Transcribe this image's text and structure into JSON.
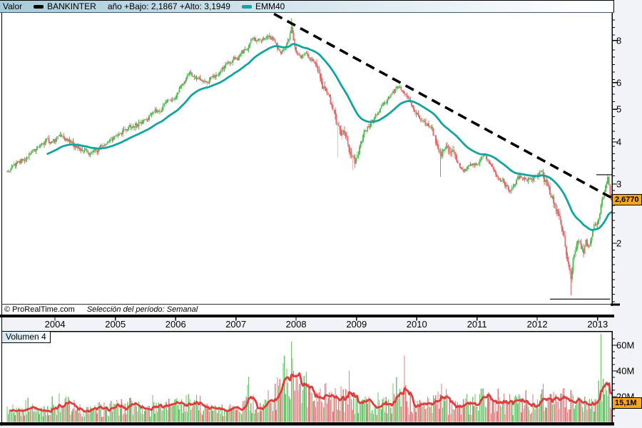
{
  "header": {
    "panel_label": "Valor",
    "instrument": "BANKINTER",
    "year_stats": "año +Bajo: 2,1867 +Alto: 3,1949",
    "ma_name": "EMM40"
  },
  "footer": {
    "copyright": "© ProRealTime.com",
    "period": "Selección del período: Semanal"
  },
  "price_axis": {
    "major_values": [
      2,
      3,
      4,
      5,
      6,
      8
    ],
    "major_labels": [
      "2",
      "3",
      "4",
      "5",
      "6",
      "8"
    ],
    "last_price_label": "2,6770"
  },
  "volume_panel": {
    "label": "Volumen 4",
    "axis_labels": [
      {
        "v": 60,
        "text": "60M"
      },
      {
        "v": 40,
        "text": "40M"
      },
      {
        "v": 20,
        "text": "20M"
      }
    ],
    "last_ma_label": "15,1M"
  },
  "x_axis": {
    "years": [
      "2004",
      "2005",
      "2006",
      "2007",
      "2008",
      "2009",
      "2010",
      "2011",
      "2012",
      "2013"
    ]
  },
  "colors": {
    "up": "#57bd5b",
    "down": "#e06e6e",
    "ema": "#12a5a0",
    "vol_up": "#6cc46c",
    "vol_down": "#e07e7e",
    "vol_ma": "#e23b3b",
    "trendline": "#000000",
    "label_bg": "#f9a61c"
  },
  "chart_data": {
    "type": "candlestick",
    "instrument": "BANKINTER",
    "timeframe": "Semanal",
    "log_scale": true,
    "start_date": "2003-03-17",
    "weeks": 524,
    "price_axis_range": [
      1.32,
      9.7
    ],
    "volume_axis_range_M": [
      0,
      70
    ],
    "year_low": 2.1867,
    "year_high": 3.1949,
    "last_close": 2.677,
    "ema_period": 40,
    "volume_ma_last_M": 15.1,
    "price_waypoints": [
      [
        0,
        3.3
      ],
      [
        8,
        3.45
      ],
      [
        18,
        3.62
      ],
      [
        27,
        3.88
      ],
      [
        38,
        4.05
      ],
      [
        48,
        4.1
      ],
      [
        56,
        3.98
      ],
      [
        64,
        3.8
      ],
      [
        72,
        3.68
      ],
      [
        80,
        3.85
      ],
      [
        88,
        4.05
      ],
      [
        98,
        4.22
      ],
      [
        108,
        4.45
      ],
      [
        118,
        4.62
      ],
      [
        128,
        4.9
      ],
      [
        138,
        5.15
      ],
      [
        146,
        5.5
      ],
      [
        152,
        5.95
      ],
      [
        159,
        6.4
      ],
      [
        164,
        6.25
      ],
      [
        169,
        5.95
      ],
      [
        175,
        6.1
      ],
      [
        183,
        6.45
      ],
      [
        191,
        6.75
      ],
      [
        199,
        7.15
      ],
      [
        207,
        7.55
      ],
      [
        212,
        8.1
      ],
      [
        217,
        7.9
      ],
      [
        223,
        8.3
      ],
      [
        229,
        8.1
      ],
      [
        233,
        7.7
      ],
      [
        237,
        7.2
      ],
      [
        241,
        7.8
      ],
      [
        245,
        8.4
      ],
      [
        246,
        8.7
      ],
      [
        248,
        7.9
      ],
      [
        251,
        7.35
      ],
      [
        255,
        7.2
      ],
      [
        259,
        7.4
      ],
      [
        263,
        7.05
      ],
      [
        267,
        6.8
      ],
      [
        271,
        6.2
      ],
      [
        276,
        5.55
      ],
      [
        281,
        5.05
      ],
      [
        285,
        4.6
      ],
      [
        289,
        4.1
      ],
      [
        292,
        4.35
      ],
      [
        295,
        3.95
      ],
      [
        299,
        3.6
      ],
      [
        301,
        3.52
      ],
      [
        305,
        3.95
      ],
      [
        311,
        4.35
      ],
      [
        318,
        4.7
      ],
      [
        325,
        5.1
      ],
      [
        332,
        5.55
      ],
      [
        338,
        5.82
      ],
      [
        342,
        5.65
      ],
      [
        346,
        5.42
      ],
      [
        353,
        5.0
      ],
      [
        360,
        4.6
      ],
      [
        367,
        4.38
      ],
      [
        371,
        4.05
      ],
      [
        375,
        3.6
      ],
      [
        379,
        3.85
      ],
      [
        383,
        3.75
      ],
      [
        388,
        3.55
      ],
      [
        394,
        3.28
      ],
      [
        399,
        3.35
      ],
      [
        404,
        3.42
      ],
      [
        409,
        3.52
      ],
      [
        414,
        3.58
      ],
      [
        419,
        3.4
      ],
      [
        424,
        3.22
      ],
      [
        429,
        3.08
      ],
      [
        434,
        2.88
      ],
      [
        437,
        2.95
      ],
      [
        441,
        3.08
      ],
      [
        446,
        3.18
      ],
      [
        450,
        3.05
      ],
      [
        454,
        3.1
      ],
      [
        458,
        3.22
      ],
      [
        461,
        3.32
      ],
      [
        464,
        3.12
      ],
      [
        468,
        2.92
      ],
      [
        473,
        2.7
      ],
      [
        477,
        2.45
      ],
      [
        482,
        2.12
      ],
      [
        485,
        1.8
      ],
      [
        488,
        1.56
      ],
      [
        490,
        1.78
      ],
      [
        492,
        1.95
      ],
      [
        494,
        2.06
      ],
      [
        497,
        1.96
      ],
      [
        499,
        1.86
      ],
      [
        501,
        2.0
      ],
      [
        503,
        1.92
      ],
      [
        505,
        2.06
      ],
      [
        507,
        2.2
      ],
      [
        509,
        2.3
      ],
      [
        511,
        2.26
      ],
      [
        513,
        2.45
      ],
      [
        515,
        2.65
      ],
      [
        517,
        2.88
      ],
      [
        519,
        3.06
      ],
      [
        520,
        3.14
      ],
      [
        521,
        2.96
      ],
      [
        522,
        2.78
      ],
      [
        523,
        2.677
      ]
    ],
    "wick_overrides": [
      [
        159,
        6.55,
        1
      ],
      [
        246,
        9.3,
        1
      ],
      [
        286,
        3.6,
        0
      ],
      [
        299,
        3.3,
        0
      ],
      [
        375,
        3.15,
        0
      ],
      [
        488,
        1.4,
        0
      ],
      [
        511,
        2.187,
        0
      ],
      [
        520,
        3.195,
        1
      ]
    ],
    "volume_waypoints": [
      [
        0,
        10
      ],
      [
        10,
        9
      ],
      [
        17,
        14
      ],
      [
        25,
        9
      ],
      [
        40,
        10
      ],
      [
        52,
        13
      ],
      [
        70,
        10
      ],
      [
        90,
        11
      ],
      [
        104,
        13
      ],
      [
        120,
        10
      ],
      [
        140,
        12
      ],
      [
        159,
        16
      ],
      [
        171,
        12
      ],
      [
        186,
        11
      ],
      [
        201,
        13
      ],
      [
        216,
        15
      ],
      [
        230,
        18
      ],
      [
        234,
        26
      ],
      [
        240,
        34
      ],
      [
        246,
        46
      ],
      [
        250,
        32
      ],
      [
        257,
        28
      ],
      [
        263,
        20
      ],
      [
        269,
        17
      ],
      [
        275,
        22
      ],
      [
        283,
        17
      ],
      [
        289,
        20
      ],
      [
        296,
        16
      ],
      [
        302,
        15
      ],
      [
        313,
        13
      ],
      [
        323,
        12
      ],
      [
        333,
        14
      ],
      [
        339,
        16
      ],
      [
        343,
        24
      ],
      [
        348,
        14
      ],
      [
        358,
        12
      ],
      [
        368,
        13
      ],
      [
        376,
        19
      ],
      [
        383,
        13
      ],
      [
        393,
        11
      ],
      [
        403,
        15
      ],
      [
        411,
        18
      ],
      [
        418,
        16
      ],
      [
        425,
        17
      ],
      [
        431,
        14
      ],
      [
        438,
        13
      ],
      [
        443,
        15
      ],
      [
        449,
        17
      ],
      [
        455,
        13
      ],
      [
        461,
        15
      ],
      [
        464,
        18
      ],
      [
        469,
        15
      ],
      [
        473,
        14
      ],
      [
        478,
        16
      ],
      [
        481,
        18
      ],
      [
        485,
        15
      ],
      [
        488,
        17
      ],
      [
        492,
        13
      ],
      [
        497,
        11
      ],
      [
        501,
        12
      ],
      [
        505,
        13
      ],
      [
        509,
        14
      ],
      [
        511,
        15
      ],
      [
        513,
        30
      ],
      [
        515,
        20
      ],
      [
        517,
        16
      ],
      [
        519,
        18
      ],
      [
        521,
        15
      ],
      [
        523,
        14
      ]
    ],
    "volume_spikes": [
      [
        234,
        35
      ],
      [
        238,
        30
      ],
      [
        242,
        42
      ],
      [
        246,
        63
      ],
      [
        248,
        40
      ],
      [
        250,
        38
      ],
      [
        253,
        30
      ],
      [
        257,
        36
      ],
      [
        261,
        30
      ],
      [
        268,
        24
      ],
      [
        275,
        30
      ],
      [
        281,
        24
      ],
      [
        289,
        28
      ],
      [
        293,
        26
      ],
      [
        302,
        22
      ],
      [
        313,
        20
      ],
      [
        344,
        52
      ],
      [
        349,
        24
      ],
      [
        364,
        20
      ],
      [
        376,
        30
      ],
      [
        380,
        26
      ],
      [
        398,
        22
      ],
      [
        411,
        26
      ],
      [
        418,
        22
      ],
      [
        425,
        26
      ],
      [
        435,
        22
      ],
      [
        449,
        25
      ],
      [
        455,
        22
      ],
      [
        464,
        30
      ],
      [
        473,
        24
      ],
      [
        481,
        26
      ],
      [
        488,
        25
      ],
      [
        494,
        20
      ],
      [
        500,
        20
      ],
      [
        514,
        70
      ],
      [
        516,
        34
      ],
      [
        518,
        30
      ],
      [
        521,
        26
      ]
    ],
    "trendline": {
      "style": "dashed",
      "from": [
        231,
        9.6
      ],
      "to": [
        524,
        2.72
      ]
    },
    "support_line": {
      "price": 1.365,
      "from_week": 470,
      "to_week": 522
    },
    "high_marker_line": {
      "price": 3.1949,
      "from_week": 510,
      "to_week": 524
    }
  }
}
